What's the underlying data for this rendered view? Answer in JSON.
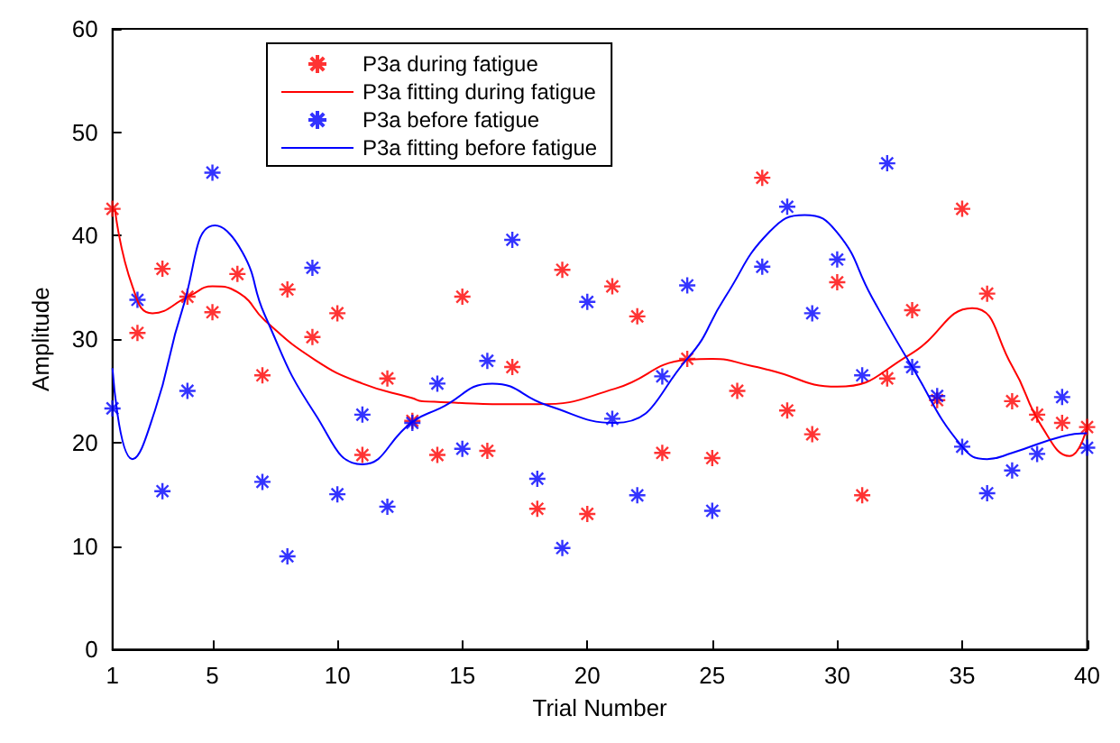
{
  "chart_data": {
    "type": "scatter",
    "xlabel": "Trial Number",
    "ylabel": "Amplitude",
    "xlim": [
      1,
      40
    ],
    "ylim": [
      0,
      60
    ],
    "xticks": [
      1,
      5,
      10,
      15,
      20,
      25,
      30,
      35,
      40
    ],
    "yticks": [
      0,
      10,
      20,
      30,
      40,
      50,
      60
    ],
    "grid": false,
    "legend": "top left",
    "marker": "cross",
    "x": [
      1,
      2,
      3,
      4,
      5,
      6,
      7,
      8,
      9,
      10,
      11,
      12,
      13,
      14,
      15,
      16,
      17,
      18,
      19,
      20,
      21,
      22,
      23,
      24,
      25,
      26,
      27,
      28,
      29,
      30,
      31,
      32,
      33,
      34,
      35,
      36,
      37,
      38,
      39,
      40
    ],
    "series": [
      {
        "name": "P3a during fatigue",
        "color": "#ff0000",
        "values": [
          42.6,
          30.6,
          36.8,
          34.1,
          32.6,
          36.3,
          26.5,
          34.8,
          30.2,
          32.5,
          18.8,
          26.2,
          22.1,
          18.8,
          34.1,
          19.2,
          27.3,
          13.6,
          36.7,
          13.1,
          35.1,
          32.2,
          19.0,
          28.1,
          18.5,
          25.0,
          45.6,
          23.1,
          20.8,
          35.5,
          14.9,
          26.2,
          32.8,
          24.1,
          42.6,
          34.4,
          24.0,
          22.7,
          21.9,
          21.5
        ]
      },
      {
        "name": "P3a fitting during fatigue",
        "type": "line",
        "marker": "none",
        "color": "#ff0000",
        "x": [
          1.1,
          1.8,
          2.6,
          4.1,
          5,
          6.1,
          7.1,
          9.1,
          11,
          13,
          13.4,
          18,
          21.1,
          24,
          25,
          26.6,
          27.3,
          30,
          32.9,
          35.4,
          37,
          38.2,
          39.3,
          40
        ],
        "values": [
          42.6,
          35.1,
          32.5,
          34.2,
          35.1,
          34.4,
          31.8,
          28.0,
          25.7,
          24.3,
          24.0,
          23.7,
          25.2,
          28.0,
          28.1,
          27.4,
          27.0,
          25.4,
          28.5,
          33.0,
          27.4,
          21.5,
          18.7,
          21.5
        ]
      },
      {
        "name": "P3a before fatigue",
        "color": "#0000ff",
        "values": [
          23.3,
          33.8,
          15.3,
          25.0,
          46.1,
          null,
          16.2,
          9.0,
          36.9,
          15.0,
          22.7,
          13.8,
          21.9,
          25.7,
          19.4,
          27.9,
          39.6,
          16.5,
          9.8,
          33.6,
          22.3,
          14.9,
          26.4,
          35.2,
          13.4,
          null,
          37.0,
          42.8,
          32.5,
          37.7,
          26.5,
          47.0,
          27.3,
          24.5,
          19.6,
          15.1,
          17.3,
          18.9,
          24.4,
          19.5
        ]
      },
      {
        "name": "P3a fitting before fatigue",
        "type": "line",
        "marker": "none",
        "color": "#0000ff",
        "x": [
          1,
          1.8,
          2.7,
          3.8,
          5.1,
          6.2,
          7.1,
          9.1,
          11,
          13,
          14.1,
          16.2,
          18.4,
          21.1,
          24,
          25.5,
          27.3,
          28.7,
          30,
          31.4,
          33,
          35,
          36,
          37,
          39,
          40
        ],
        "values": [
          27.2,
          18.4,
          23.1,
          32.9,
          41.0,
          38.4,
          32.3,
          22.8,
          17.9,
          22.0,
          23.3,
          25.7,
          23.6,
          21.9,
          28.1,
          34.0,
          40.4,
          42.0,
          40.3,
          34.0,
          27.3,
          19.6,
          18.4,
          19.0,
          20.6,
          20.9
        ]
      }
    ]
  }
}
